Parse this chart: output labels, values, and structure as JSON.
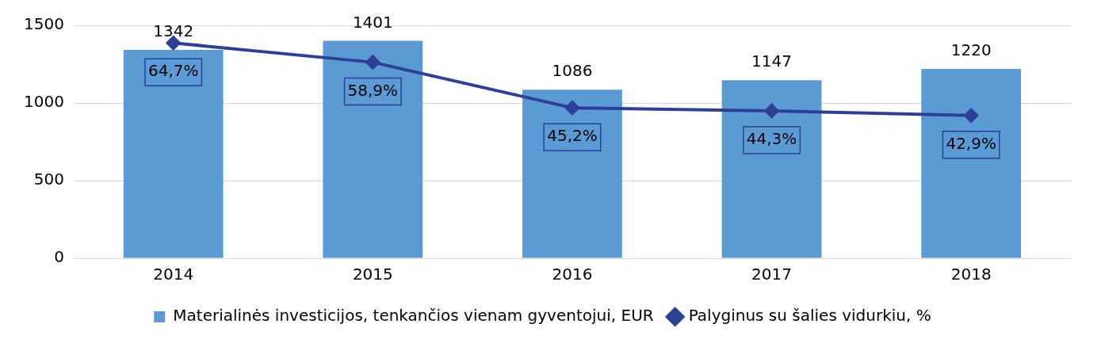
{
  "chart_data": {
    "type": "bar",
    "categories": [
      "2014",
      "2015",
      "2016",
      "2017",
      "2018"
    ],
    "series": [
      {
        "name": "Materialinės investicijos, tenkančios vienam gyventojui, EUR",
        "color": "#5b9bd5",
        "values": [
          1342,
          1401,
          1086,
          1147,
          1220
        ],
        "value_labels": [
          "1342",
          "1401",
          "1086",
          "1147",
          "1220"
        ]
      },
      {
        "name": "Palyginus su šalies vidurkiu, %",
        "type": "line",
        "axis": "y2",
        "color": "#2f3f97",
        "values": [
          64.7,
          58.9,
          45.2,
          44.3,
          42.9
        ],
        "value_labels": [
          "64,7%",
          "58,9%",
          "45,2%",
          "44,3%",
          "42,9%"
        ]
      }
    ],
    "ylim": [
      0,
      1500
    ],
    "yticks": [
      0,
      500,
      1000,
      1500
    ],
    "y2lim": [
      0,
      70
    ],
    "tick_labels": "xy",
    "grid": "y",
    "legend": "bottom",
    "marker": "diamond",
    "line_style": "solid"
  }
}
